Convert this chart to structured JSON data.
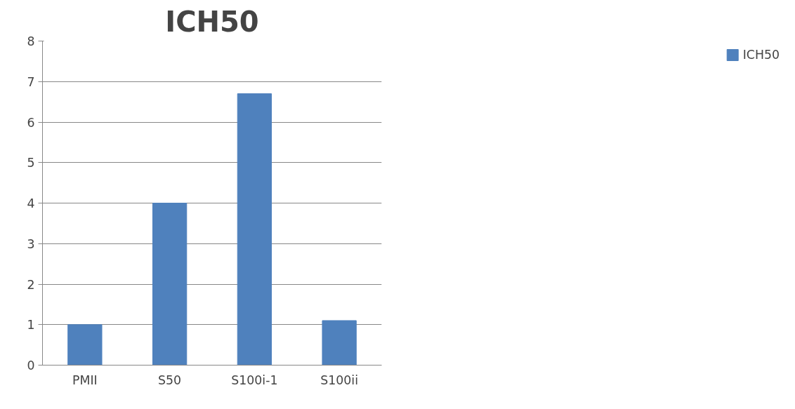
{
  "chart_data": {
    "type": "bar",
    "title": "ICH50",
    "categories": [
      "PMII",
      "S50",
      "S100i-1",
      "S100ii"
    ],
    "series": [
      {
        "name": "ICH50",
        "color": "#4f81bd",
        "values": [
          1.0,
          4.0,
          6.7,
          1.1
        ]
      }
    ],
    "ylim": [
      0,
      8
    ],
    "yticks": [
      0,
      1,
      2,
      3,
      4,
      5,
      6,
      7,
      8
    ],
    "grid": "y",
    "legend": "right"
  }
}
